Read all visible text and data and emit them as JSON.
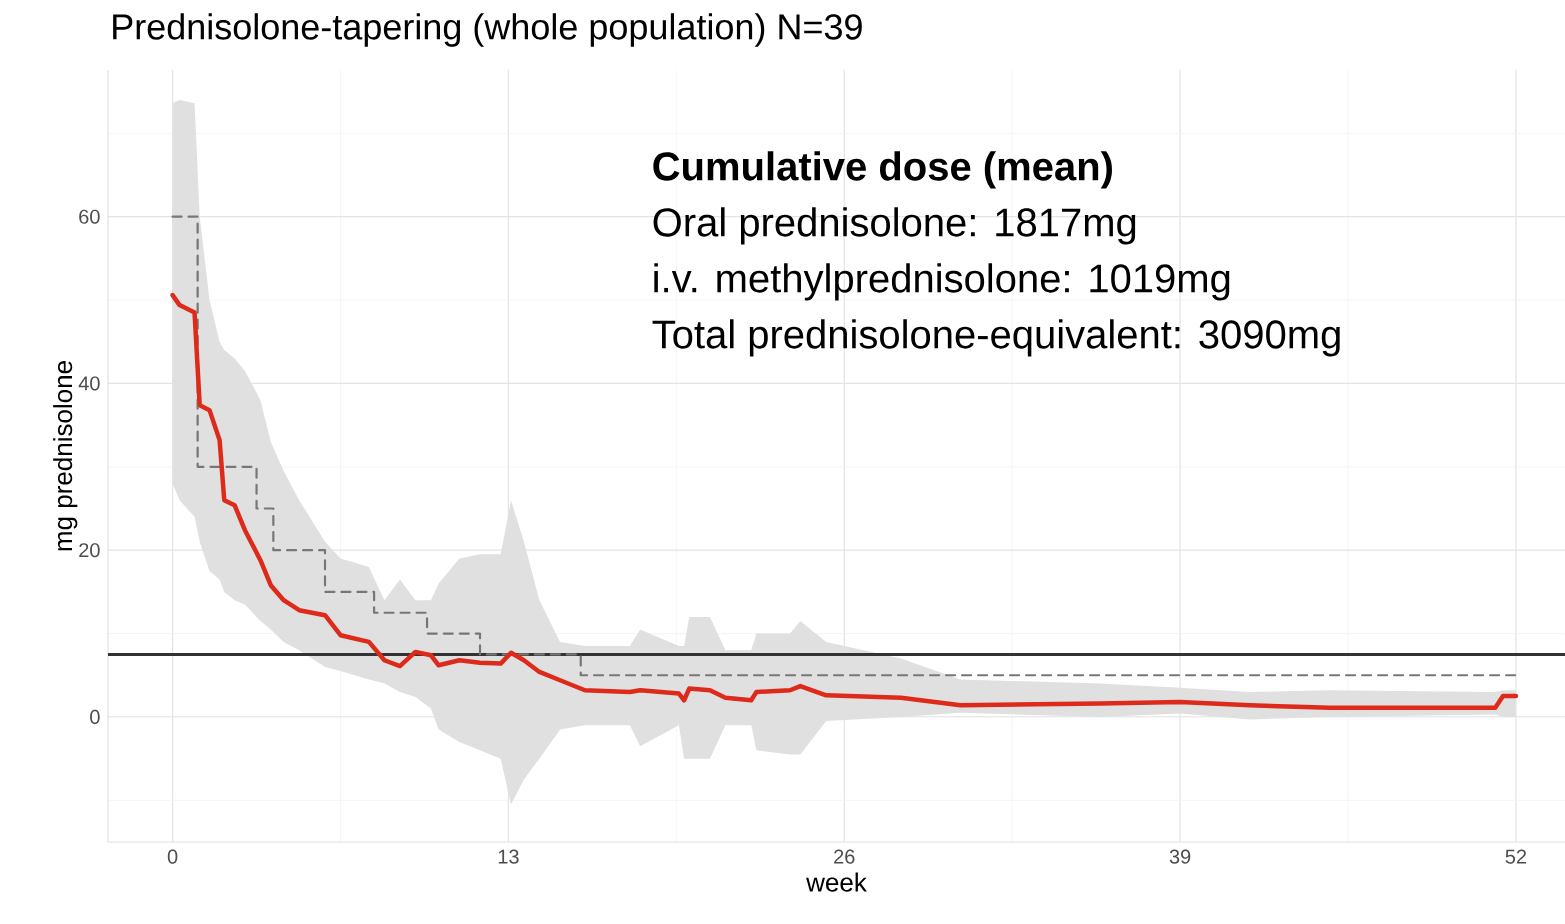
{
  "chart_data": {
    "type": "line",
    "title": "Prednisolone-tapering (whole population) N=39",
    "xlabel": "week",
    "ylabel": "mg prednisolone",
    "xlim": [
      -2.5,
      53.9
    ],
    "ylim": [
      -15,
      77.6
    ],
    "xticks": [
      0,
      13,
      26,
      39,
      52
    ],
    "yticks": [
      0,
      20,
      40,
      60
    ],
    "grid": true,
    "annotations": [
      "Cumulative dose (mean)",
      "Oral prednisolone: 1817mg",
      "i.v. methylprednisolone:  1019mg",
      "Total prednisolone-equivalent:  3090mg"
    ],
    "ref_lines": [
      {
        "axis": "y",
        "value": 7.5,
        "color": "#333333"
      }
    ],
    "series": [
      {
        "color": "#dd2a1a",
        "x": [
          0,
          0.27,
          0.85,
          1.05,
          1.43,
          1.82,
          2.0,
          2.4,
          2.8,
          3.4,
          3.8,
          4.3,
          4.9,
          5.9,
          6.5,
          7.6,
          8.2,
          8.8,
          9.4,
          10.0,
          10.3,
          11.1,
          11.9,
          12.7,
          13.1,
          13.6,
          14.2,
          15.0,
          15.96,
          17.7,
          18.1,
          19.6,
          19.8,
          20.0,
          20.8,
          21.4,
          22.4,
          22.6,
          23.9,
          24.3,
          25.3,
          28.2,
          30.5,
          35.9,
          39.0,
          41.7,
          44.8,
          51.2,
          51.5,
          52
        ],
        "values": [
          50.6,
          49.4,
          48.5,
          37.4,
          36.8,
          33.2,
          26,
          25.4,
          22.4,
          18.8,
          15.8,
          14,
          12.8,
          12.2,
          9.8,
          9.0,
          6.8,
          6.1,
          7.8,
          7.4,
          6.2,
          6.8,
          6.5,
          6.4,
          7.7,
          6.8,
          5.4,
          4.4,
          3.2,
          3.0,
          3.2,
          2.8,
          2.0,
          3.4,
          3.2,
          2.3,
          2.0,
          3.0,
          3.2,
          3.7,
          2.6,
          2.3,
          1.4,
          1.6,
          1.8,
          1.4,
          1.1,
          1.1,
          2.5,
          2.5
        ],
        "upper": [
          73.6,
          74,
          73.6,
          60,
          50,
          45,
          44,
          43,
          41.5,
          38,
          33,
          29.5,
          26,
          21,
          19,
          18,
          14,
          16.5,
          14,
          14,
          16,
          19,
          19.5,
          19.5,
          26,
          21,
          14,
          9,
          8.5,
          8.5,
          10.5,
          8.5,
          8.5,
          12,
          12,
          8,
          8,
          10,
          10,
          11.5,
          9,
          7,
          4.5,
          4,
          3.5,
          3,
          3.2,
          3,
          3.2,
          3.2
        ],
        "lower": [
          28,
          26,
          24,
          21,
          17.5,
          16.5,
          15,
          14,
          13.5,
          11.5,
          10.5,
          9,
          8,
          6,
          5.5,
          4.5,
          4,
          3,
          2.4,
          1,
          -1.5,
          -3,
          -4,
          -5,
          -10.5,
          -7.5,
          -5,
          -1.5,
          -1,
          -1,
          -3.5,
          -1,
          -5,
          -5,
          -5,
          -1,
          -1,
          -4,
          -4.5,
          -4.5,
          -0.5,
          0,
          0.5,
          0,
          0.4,
          -0.3,
          0,
          0.3,
          0,
          0
        ]
      },
      {
        "type": "step",
        "color": "#777777",
        "line_style": "dashed",
        "x": [
          0,
          0.97,
          3.25,
          3.9,
          5.9,
          7.8,
          9.85,
          11.9,
          15.8,
          52
        ],
        "values": [
          60,
          30,
          25,
          20,
          15,
          12.5,
          10,
          7.5,
          5,
          5
        ]
      }
    ]
  }
}
